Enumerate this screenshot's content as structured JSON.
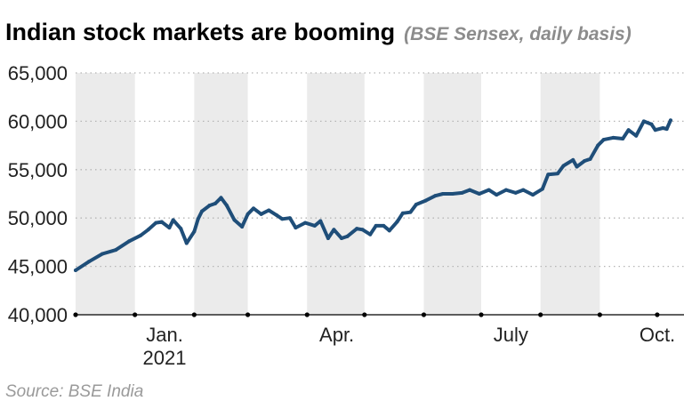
{
  "header": {
    "title": "Indian stock markets are booming",
    "subtitle": "(BSE Sensex, daily basis)"
  },
  "source": "Source: BSE India",
  "colors": {
    "line": "#1f4e79",
    "band": "#ebebeb",
    "grid": "#b5b5b5",
    "axis": "#000000"
  },
  "chart_data": {
    "type": "line",
    "title": "Indian stock markets are booming",
    "subtitle": "(BSE Sensex, daily basis)",
    "xlabel": "",
    "ylabel": "",
    "ylim": [
      40000,
      65000
    ],
    "xlim": [
      "2020-12-01",
      "2021-10-15"
    ],
    "y_ticks": [
      40000,
      45000,
      50000,
      55000,
      60000,
      65000
    ],
    "y_tick_labels": [
      "40,000",
      "45,000",
      "50,000",
      "55,000",
      "60,000",
      "65,000"
    ],
    "x_tick_labels": [
      {
        "date": "2021-01-01",
        "lines": [
          "Jan.",
          "2021"
        ]
      },
      {
        "date": "2021-04-01",
        "lines": [
          "Apr."
        ]
      },
      {
        "date": "2021-07-01",
        "lines": [
          "July"
        ]
      },
      {
        "date": "2021-10-01",
        "lines": [
          "Oct."
        ]
      }
    ],
    "month_boundaries": [
      "2020-12-01",
      "2021-01-01",
      "2021-02-01",
      "2021-03-01",
      "2021-04-01",
      "2021-05-01",
      "2021-06-01",
      "2021-07-01",
      "2021-08-01",
      "2021-09-01",
      "2021-10-01"
    ],
    "shaded_months": [
      [
        "2020-12-01",
        "2021-01-01"
      ],
      [
        "2021-02-01",
        "2021-03-01"
      ],
      [
        "2021-04-01",
        "2021-05-01"
      ],
      [
        "2021-06-01",
        "2021-07-01"
      ],
      [
        "2021-08-01",
        "2021-09-01"
      ]
    ],
    "grid": "horizontal dotted",
    "legend": "none",
    "series": [
      {
        "points": [
          [
            "2020-12-01",
            44600
          ],
          [
            "2020-12-08",
            45500
          ],
          [
            "2020-12-15",
            46300
          ],
          [
            "2020-12-22",
            46700
          ],
          [
            "2020-12-29",
            47600
          ],
          [
            "2021-01-04",
            48200
          ],
          [
            "2021-01-08",
            48800
          ],
          [
            "2021-01-12",
            49500
          ],
          [
            "2021-01-15",
            49600
          ],
          [
            "2021-01-19",
            49000
          ],
          [
            "2021-01-21",
            49800
          ],
          [
            "2021-01-25",
            48900
          ],
          [
            "2021-01-28",
            47400
          ],
          [
            "2021-02-01",
            48600
          ],
          [
            "2021-02-03",
            49900
          ],
          [
            "2021-02-05",
            50700
          ],
          [
            "2021-02-09",
            51300
          ],
          [
            "2021-02-12",
            51500
          ],
          [
            "2021-02-15",
            52100
          ],
          [
            "2021-02-18",
            51300
          ],
          [
            "2021-02-22",
            49800
          ],
          [
            "2021-02-26",
            49100
          ],
          [
            "2021-03-01",
            50400
          ],
          [
            "2021-03-04",
            51000
          ],
          [
            "2021-03-08",
            50400
          ],
          [
            "2021-03-12",
            50800
          ],
          [
            "2021-03-16",
            50300
          ],
          [
            "2021-03-19",
            49900
          ],
          [
            "2021-03-23",
            50000
          ],
          [
            "2021-03-26",
            49000
          ],
          [
            "2021-03-31",
            49500
          ],
          [
            "2021-04-05",
            49200
          ],
          [
            "2021-04-08",
            49700
          ],
          [
            "2021-04-12",
            47900
          ],
          [
            "2021-04-15",
            48800
          ],
          [
            "2021-04-19",
            47900
          ],
          [
            "2021-04-22",
            48100
          ],
          [
            "2021-04-27",
            48900
          ],
          [
            "2021-04-30",
            48800
          ],
          [
            "2021-05-04",
            48300
          ],
          [
            "2021-05-07",
            49200
          ],
          [
            "2021-05-11",
            49200
          ],
          [
            "2021-05-14",
            48700
          ],
          [
            "2021-05-18",
            49600
          ],
          [
            "2021-05-21",
            50500
          ],
          [
            "2021-05-25",
            50600
          ],
          [
            "2021-05-28",
            51400
          ],
          [
            "2021-06-02",
            51800
          ],
          [
            "2021-06-07",
            52300
          ],
          [
            "2021-06-11",
            52500
          ],
          [
            "2021-06-16",
            52500
          ],
          [
            "2021-06-21",
            52600
          ],
          [
            "2021-06-25",
            52900
          ],
          [
            "2021-06-30",
            52500
          ],
          [
            "2021-07-05",
            52900
          ],
          [
            "2021-07-09",
            52400
          ],
          [
            "2021-07-14",
            52900
          ],
          [
            "2021-07-19",
            52600
          ],
          [
            "2021-07-23",
            52900
          ],
          [
            "2021-07-28",
            52400
          ],
          [
            "2021-08-02",
            53000
          ],
          [
            "2021-08-05",
            54500
          ],
          [
            "2021-08-10",
            54600
          ],
          [
            "2021-08-13",
            55400
          ],
          [
            "2021-08-18",
            56000
          ],
          [
            "2021-08-20",
            55300
          ],
          [
            "2021-08-24",
            55900
          ],
          [
            "2021-08-27",
            56100
          ],
          [
            "2021-08-31",
            57500
          ],
          [
            "2021-09-03",
            58100
          ],
          [
            "2021-09-08",
            58300
          ],
          [
            "2021-09-13",
            58200
          ],
          [
            "2021-09-16",
            59100
          ],
          [
            "2021-09-20",
            58500
          ],
          [
            "2021-09-24",
            60000
          ],
          [
            "2021-09-28",
            59700
          ],
          [
            "2021-09-30",
            59100
          ],
          [
            "2021-10-04",
            59300
          ],
          [
            "2021-10-06",
            59200
          ],
          [
            "2021-10-08",
            60100
          ]
        ]
      }
    ]
  }
}
